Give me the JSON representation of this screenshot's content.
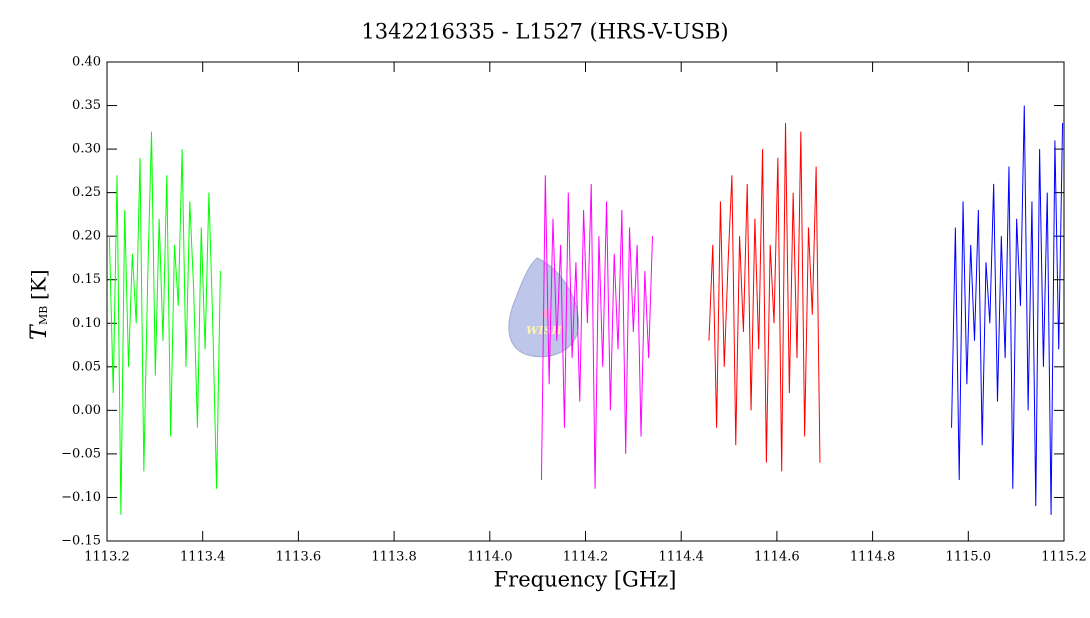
{
  "chart_data": {
    "type": "line",
    "title": "1342216335 - L1527 (HRS-V-USB)",
    "xlabel": "Frequency [GHz]",
    "ylabel": {
      "symbol": "T",
      "subscript": "MB",
      "unit": "[K]"
    },
    "watermark": "WISH",
    "xlim": [
      1113.2,
      1115.2
    ],
    "xticks": [
      {
        "value": 1113.2,
        "label": "1113.2"
      },
      {
        "value": 1113.4,
        "label": "1113.4"
      },
      {
        "value": 1113.6,
        "label": "1113.6"
      },
      {
        "value": 1113.8,
        "label": "1113.8"
      },
      {
        "value": 1114.0,
        "label": "1114.0"
      },
      {
        "value": 1114.2,
        "label": "1114.2"
      },
      {
        "value": 1114.4,
        "label": "1114.4"
      },
      {
        "value": 1114.6,
        "label": "1114.6"
      },
      {
        "value": 1114.8,
        "label": "1114.8"
      },
      {
        "value": 1115.0,
        "label": "1115.0"
      },
      {
        "value": 1115.2,
        "label": "1115.2"
      }
    ],
    "ylim": [
      -0.15,
      0.4
    ],
    "yticks": [
      {
        "value": -0.15,
        "label": "−0.15"
      },
      {
        "value": -0.1,
        "label": "−0.10"
      },
      {
        "value": -0.05,
        "label": "−0.05"
      },
      {
        "value": 0.0,
        "label": "0.00"
      },
      {
        "value": 0.05,
        "label": "0.05"
      },
      {
        "value": 0.1,
        "label": "0.10"
      },
      {
        "value": 0.15,
        "label": "0.15"
      },
      {
        "value": 0.2,
        "label": "0.20"
      },
      {
        "value": 0.25,
        "label": "0.25"
      },
      {
        "value": 0.3,
        "label": "0.30"
      },
      {
        "value": 0.35,
        "label": "0.35"
      },
      {
        "value": 0.4,
        "label": "0.40"
      }
    ],
    "grid": false,
    "series": [
      {
        "color": "#00ff00",
        "x": [
          1113.205,
          1113.213,
          1113.221,
          1113.229,
          1113.237,
          1113.245,
          1113.253,
          1113.261,
          1113.269,
          1113.277,
          1113.285,
          1113.293,
          1113.301,
          1113.309,
          1113.317,
          1113.325,
          1113.333,
          1113.341,
          1113.349,
          1113.357,
          1113.365,
          1113.373,
          1113.381,
          1113.389,
          1113.397,
          1113.405,
          1113.413,
          1113.421,
          1113.429,
          1113.437
        ],
        "values": [
          0.2,
          0.02,
          0.27,
          -0.12,
          0.23,
          0.05,
          0.18,
          0.1,
          0.29,
          -0.07,
          0.15,
          0.32,
          0.04,
          0.22,
          0.08,
          0.27,
          -0.03,
          0.19,
          0.12,
          0.3,
          0.05,
          0.24,
          0.14,
          -0.02,
          0.21,
          0.07,
          0.25,
          0.1,
          -0.09,
          0.16
        ]
      },
      {
        "color": "#ff00ff",
        "x": [
          1114.108,
          1114.116,
          1114.124,
          1114.132,
          1114.14,
          1114.148,
          1114.156,
          1114.164,
          1114.172,
          1114.18,
          1114.188,
          1114.196,
          1114.204,
          1114.212,
          1114.22,
          1114.228,
          1114.236,
          1114.244,
          1114.252,
          1114.26,
          1114.268,
          1114.276,
          1114.284,
          1114.292,
          1114.3,
          1114.308,
          1114.316,
          1114.324,
          1114.332,
          1114.34
        ],
        "values": [
          -0.08,
          0.27,
          0.03,
          0.22,
          0.08,
          0.19,
          -0.02,
          0.25,
          0.06,
          0.17,
          0.01,
          0.23,
          0.1,
          0.26,
          -0.09,
          0.2,
          0.05,
          0.24,
          0.0,
          0.18,
          0.07,
          0.23,
          -0.05,
          0.21,
          0.09,
          0.19,
          -0.03,
          0.16,
          0.06,
          0.2
        ]
      },
      {
        "color": "#ff0000",
        "x": [
          1114.458,
          1114.466,
          1114.474,
          1114.482,
          1114.49,
          1114.498,
          1114.506,
          1114.514,
          1114.522,
          1114.53,
          1114.538,
          1114.546,
          1114.554,
          1114.562,
          1114.57,
          1114.578,
          1114.586,
          1114.594,
          1114.602,
          1114.61,
          1114.618,
          1114.626,
          1114.634,
          1114.642,
          1114.65,
          1114.658,
          1114.666,
          1114.674,
          1114.682,
          1114.69
        ],
        "values": [
          0.08,
          0.19,
          -0.02,
          0.24,
          0.05,
          0.17,
          0.27,
          -0.04,
          0.2,
          0.09,
          0.26,
          0.0,
          0.22,
          0.07,
          0.3,
          -0.06,
          0.19,
          0.1,
          0.29,
          -0.07,
          0.33,
          0.02,
          0.25,
          0.06,
          0.32,
          -0.03,
          0.21,
          0.11,
          0.28,
          -0.06
        ]
      },
      {
        "color": "#0000ff",
        "x": [
          1114.965,
          1114.973,
          1114.981,
          1114.989,
          1114.997,
          1115.005,
          1115.013,
          1115.021,
          1115.029,
          1115.037,
          1115.045,
          1115.053,
          1115.061,
          1115.069,
          1115.077,
          1115.085,
          1115.093,
          1115.101,
          1115.109,
          1115.117,
          1115.125,
          1115.133,
          1115.141,
          1115.149,
          1115.157,
          1115.165,
          1115.173,
          1115.181,
          1115.189,
          1115.197
        ],
        "values": [
          -0.02,
          0.21,
          -0.08,
          0.24,
          0.03,
          0.19,
          0.08,
          0.23,
          -0.04,
          0.17,
          0.1,
          0.26,
          0.01,
          0.2,
          0.06,
          0.28,
          -0.09,
          0.22,
          0.12,
          0.35,
          0.0,
          0.24,
          -0.11,
          0.3,
          0.05,
          0.25,
          -0.12,
          0.31,
          0.07,
          0.33
        ]
      }
    ]
  }
}
